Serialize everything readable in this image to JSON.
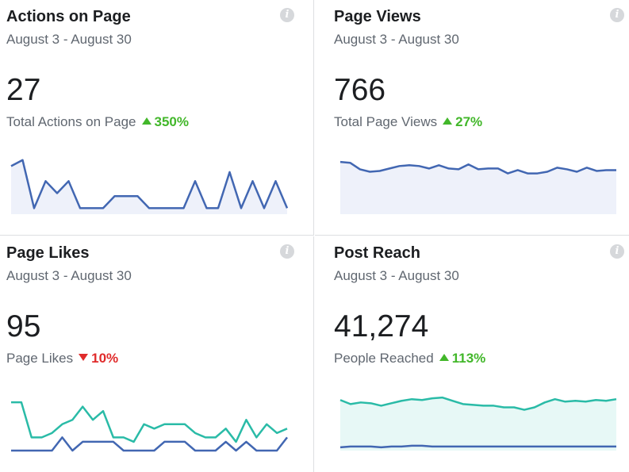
{
  "date_range": "August 3 - August 30",
  "info_glyph": "i",
  "colors": {
    "blue": "#4267b2",
    "blue_fill": "#eef1fa",
    "green": "#2abba7",
    "green_fill": "#e7f8f6",
    "up": "#42b72a",
    "down": "#e02b2b"
  },
  "cards": [
    {
      "title": "Actions on Page",
      "value": "27",
      "metric_label": "Total Actions on Page",
      "change": "350%",
      "trend": "up",
      "sparkline": {
        "series": [
          {
            "color": "blue",
            "fill": true,
            "values": [
              16,
              18,
              2,
              11,
              7,
              11,
              2,
              2,
              2,
              6,
              6,
              6,
              2,
              2,
              2,
              2,
              11,
              2,
              2,
              14,
              2,
              11,
              2,
              11,
              2
            ]
          }
        ],
        "ymax": 19
      }
    },
    {
      "title": "Page Views",
      "value": "766",
      "metric_label": "Total Page Views",
      "change": "27%",
      "trend": "up",
      "sparkline": {
        "series": [
          {
            "color": "blue",
            "fill": true,
            "values": [
              64,
              63,
              55,
              52,
              53,
              56,
              59,
              60,
              59,
              56,
              60,
              56,
              55,
              61,
              55,
              56,
              56,
              50,
              54,
              50,
              50,
              52,
              57,
              55,
              52,
              57,
              53,
              54,
              54
            ]
          }
        ],
        "ymax": 70
      }
    },
    {
      "title": "Page Likes",
      "value": "95",
      "metric_label": "Page Likes",
      "change": "10%",
      "trend": "down",
      "sparkline": {
        "series": [
          {
            "color": "green",
            "fill": false,
            "values": [
              11,
              11,
              3,
              3,
              4,
              6,
              7,
              10,
              7,
              9,
              3,
              3,
              2,
              6,
              5,
              6,
              6,
              6,
              4,
              3,
              3,
              5,
              2,
              7,
              3,
              6,
              4,
              5
            ]
          },
          {
            "color": "blue",
            "fill": false,
            "values": [
              0,
              0,
              0,
              0,
              0,
              3,
              0,
              2,
              2,
              2,
              2,
              0,
              0,
              0,
              0,
              2,
              2,
              2,
              0,
              0,
              0,
              2,
              0,
              2,
              0,
              0,
              0,
              3
            ]
          }
        ],
        "ymax": 13
      }
    },
    {
      "title": "Post Reach",
      "value": "41,274",
      "metric_label": "People Reached",
      "change": "113%",
      "trend": "up",
      "sparkline": {
        "series": [
          {
            "color": "green",
            "fill": true,
            "values": [
              62,
              57,
              59,
              58,
              55,
              58,
              61,
              63,
              62,
              64,
              65,
              61,
              57,
              56,
              55,
              55,
              53,
              53,
              50,
              53,
              59,
              63,
              60,
              61,
              60,
              62,
              61,
              63
            ]
          },
          {
            "color": "blue",
            "fill": false,
            "values": [
              4,
              5,
              5,
              5,
              4,
              5,
              5,
              6,
              6,
              5,
              5,
              5,
              5,
              5,
              5,
              5,
              5,
              5,
              5,
              5,
              5,
              5,
              5,
              5,
              5,
              5,
              5,
              5
            ]
          }
        ],
        "ymax": 70
      }
    }
  ]
}
